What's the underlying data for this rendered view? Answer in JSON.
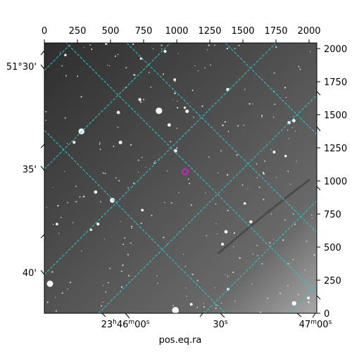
{
  "figure": {
    "x_label": "pos.eq.ra",
    "top_axis_ticks": [
      "0",
      "250",
      "500",
      "750",
      "1000",
      "1250",
      "1500",
      "1750",
      "2000"
    ],
    "right_axis_ticks": [
      "0",
      "250",
      "500",
      "750",
      "1000",
      "1250",
      "1500",
      "1750",
      "2000"
    ],
    "left_axis_ticks": [
      "51°30'",
      "35'",
      "40'"
    ],
    "bottom_axis_ticks": [
      {
        "h": "23",
        "hsup": "h",
        "m": "46",
        "msup": "m",
        "s": "00",
        "ssup": "s"
      },
      {
        "h": "",
        "hsup": "",
        "m": "",
        "msup": "",
        "s": "30",
        "ssup": "s"
      },
      {
        "h": "",
        "hsup": "",
        "m": "47",
        "msup": "m",
        "s": "00",
        "ssup": "s"
      }
    ],
    "grid_color": "#22cccc",
    "marker_color": "#cc22cc",
    "image_background": "#555555"
  }
}
